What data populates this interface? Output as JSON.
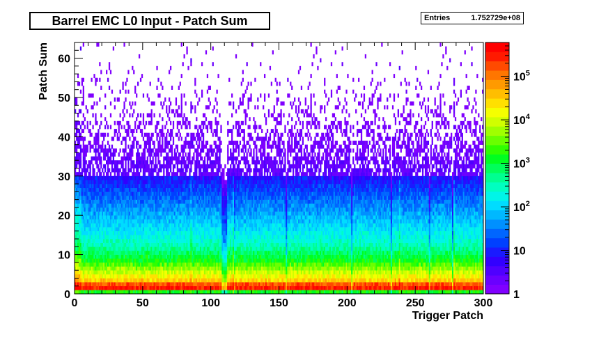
{
  "chart_data": {
    "type": "heatmap",
    "title": "Barrel EMC L0 Input - Patch Sum",
    "stats": {
      "label": "Entries",
      "value": "1.752729e+08"
    },
    "xlabel": "Trigger Patch",
    "ylabel": "Patch Sum",
    "xlim": [
      0,
      300
    ],
    "ylim": [
      0,
      64
    ],
    "x_ticks": [
      "0",
      "50",
      "100",
      "150",
      "200",
      "250",
      "300"
    ],
    "y_ticks": [
      "0",
      "10",
      "20",
      "30",
      "40",
      "50",
      "60"
    ],
    "z_scale": "log",
    "zlim": [
      1,
      600000
    ],
    "z_ticks": [
      {
        "value": 1,
        "label": "1"
      },
      {
        "value": 10,
        "label": "10"
      },
      {
        "value": 100,
        "label": "10",
        "sup": "2"
      },
      {
        "value": 1000,
        "label": "10",
        "sup": "3"
      },
      {
        "value": 10000,
        "label": "10",
        "sup": "4"
      },
      {
        "value": 100000,
        "label": "10",
        "sup": "5"
      }
    ],
    "profile": [
      {
        "patch_sum": 0,
        "typical_count": 1500
      },
      {
        "patch_sum": 1,
        "typical_count": 300000
      },
      {
        "patch_sum": 2,
        "typical_count": 150000
      },
      {
        "patch_sum": 3,
        "typical_count": 30000
      },
      {
        "patch_sum": 5,
        "typical_count": 8000
      },
      {
        "patch_sum": 8,
        "typical_count": 1500
      },
      {
        "patch_sum": 12,
        "typical_count": 300
      },
      {
        "patch_sum": 18,
        "typical_count": 80
      },
      {
        "patch_sum": 25,
        "typical_count": 20
      },
      {
        "patch_sum": 30,
        "typical_count": 6
      },
      {
        "patch_sum": 35,
        "typical_count": 2
      },
      {
        "patch_sum": 45,
        "typical_count": 1
      },
      {
        "patch_sum": 63,
        "typical_count": 1
      }
    ],
    "hot_columns": [
      0,
      1,
      2,
      3,
      4,
      85,
      116,
      117,
      238,
      278
    ],
    "cold_columns": [
      108,
      109,
      110,
      111,
      117,
      155,
      203,
      232,
      260,
      277
    ],
    "grid": false,
    "palette": [
      "#8000ff",
      "#6a00ff",
      "#4f00ff",
      "#3200ff",
      "#1a1aff",
      "#0040ff",
      "#0066ff",
      "#0090ff",
      "#00b8ff",
      "#00dcff",
      "#00f5e8",
      "#00ffc0",
      "#00ff90",
      "#00ff5a",
      "#00ff20",
      "#30ff00",
      "#6aff00",
      "#a0ff00",
      "#d0ff00",
      "#f5ff00",
      "#ffe000",
      "#ffbe00",
      "#ff9a00",
      "#ff7600",
      "#ff4a00",
      "#ff1a00",
      "#ff0000"
    ]
  }
}
